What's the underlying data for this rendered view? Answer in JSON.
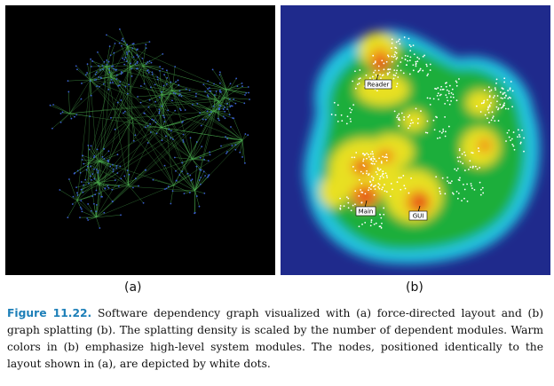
{
  "panels": {
    "a_label": "(a)",
    "b_label": "(b)",
    "b_tags": [
      "Reader",
      "Main",
      "GUI"
    ]
  },
  "caption": {
    "figure_label": "Figure 11.22.",
    "text": " Software dependency graph visualized with (a) force-directed layout and (b) graph splatting (b). The splatting density is scaled by the number of dependent modules. Warm colors in (b) emphasize high-level system modules. The nodes, positioned identically to the layout shown in (a), are depicted by white dots."
  },
  "colors": {
    "caption_label": "#1d7fb8",
    "graph_edges": "#4caf50",
    "graph_nodes": "#3a5fd0",
    "splat_background": "#1f2a8c"
  }
}
